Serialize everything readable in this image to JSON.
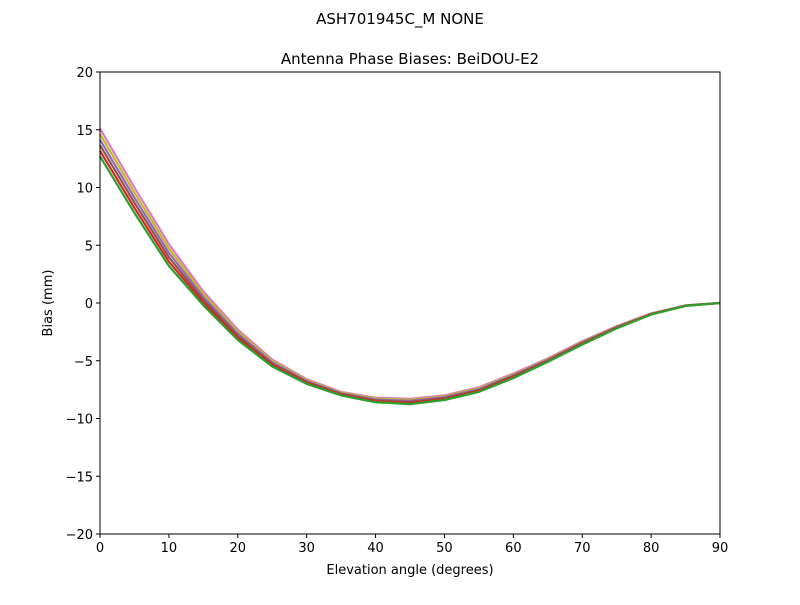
{
  "chart_data": {
    "type": "line",
    "suptitle": "ASH701945C_M    NONE",
    "title": "Antenna Phase Biases: BeiDOU-E2",
    "xlabel": "Elevation angle (degrees)",
    "ylabel": "Bias (mm)",
    "xlim": [
      0,
      90
    ],
    "ylim": [
      -20,
      20
    ],
    "xticks": [
      0,
      10,
      20,
      30,
      40,
      50,
      60,
      70,
      80,
      90
    ],
    "yticks": [
      -20,
      -15,
      -10,
      -5,
      0,
      5,
      10,
      15,
      20
    ],
    "ytick_labels": [
      "−20",
      "−15",
      "−10",
      "−5",
      "0",
      "5",
      "10",
      "15",
      "20"
    ],
    "grid": false,
    "x": [
      0,
      5,
      10,
      15,
      20,
      25,
      30,
      35,
      40,
      45,
      50,
      55,
      60,
      65,
      70,
      75,
      80,
      85,
      90
    ],
    "series": [
      {
        "color": "#e377c2",
        "values": [
          15.1,
          10.0,
          5.1,
          1.0,
          -2.3,
          -4.9,
          -6.6,
          -7.7,
          -8.2,
          -8.3,
          -8.0,
          -7.3,
          -6.1,
          -4.8,
          -3.3,
          -2.0,
          -0.9,
          -0.2,
          0
        ]
      },
      {
        "color": "#bcbd22",
        "values": [
          14.62,
          9.56,
          4.72,
          0.76,
          -2.48,
          -5.02,
          -6.68,
          -7.76,
          -8.28,
          -8.39,
          -8.08,
          -7.38,
          -6.18,
          -4.86,
          -3.36,
          -2.04,
          -0.92,
          -0.21,
          0
        ]
      },
      {
        "color": "#9467bd",
        "values": [
          14.14,
          9.12,
          4.34,
          0.52,
          -2.66,
          -5.14,
          -6.76,
          -7.82,
          -8.36,
          -8.48,
          -8.16,
          -7.46,
          -6.26,
          -4.92,
          -3.42,
          -2.08,
          -0.94,
          -0.22,
          0
        ]
      },
      {
        "color": "#8c564b",
        "values": [
          13.66,
          8.68,
          3.96,
          0.28,
          -2.84,
          -5.26,
          -6.84,
          -7.88,
          -8.44,
          -8.57,
          -8.24,
          -7.54,
          -6.34,
          -4.98,
          -3.48,
          -2.12,
          -0.96,
          -0.23,
          0
        ]
      },
      {
        "color": "#d62728",
        "values": [
          13.18,
          8.24,
          3.58,
          0.04,
          -3.02,
          -5.38,
          -6.92,
          -7.94,
          -8.52,
          -8.66,
          -8.32,
          -7.62,
          -6.42,
          -5.04,
          -3.54,
          -2.16,
          -0.98,
          -0.24,
          0
        ]
      },
      {
        "color": "#2ca02c",
        "values": [
          12.7,
          7.8,
          3.2,
          -0.2,
          -3.2,
          -5.5,
          -7.0,
          -8.0,
          -8.6,
          -8.75,
          -8.4,
          -7.7,
          -6.5,
          -5.1,
          -3.6,
          -2.2,
          -1.0,
          -0.25,
          0
        ]
      }
    ]
  }
}
